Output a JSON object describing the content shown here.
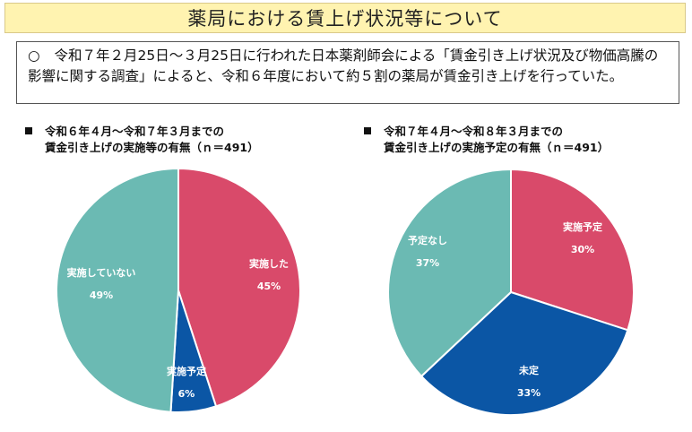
{
  "header": {
    "title": "薬局における賃上げ状況等について"
  },
  "summary": {
    "mark": "○",
    "text": "令和７年２月25日～３月25日に行われた日本薬剤師会による「賃金引き上げ状況及び物価高騰の影響に関する調査」によると、令和６年度において約５割の薬局が賃金引き上げを行っていた。"
  },
  "colors": {
    "red": "#d94a6a",
    "blue": "#0b56a5",
    "teal": "#6bbab3",
    "title_bg": "#fff3b0"
  },
  "chart_data": [
    {
      "type": "pie",
      "title_line1": "令和６年４月～令和７年３月までの",
      "title_line2": "賃金引き上げの実施等の有無（ｎ＝491）",
      "slices": [
        {
          "label": "実施した",
          "value": 45,
          "value_label": "45%",
          "color": "#d94a6a"
        },
        {
          "label": "実施予定",
          "value": 6,
          "value_label": "6%",
          "color": "#0b56a5"
        },
        {
          "label": "実施していない",
          "value": 49,
          "value_label": "49%",
          "color": "#6bbab3"
        }
      ],
      "start": "12 o'clock",
      "direction": "clockwise"
    },
    {
      "type": "pie",
      "title_line1": "令和７年４月～令和８年３月までの",
      "title_line2": "賃金引き上げの実施予定の有無（ｎ＝491）",
      "slices": [
        {
          "label": "実施予定",
          "value": 30,
          "value_label": "30%",
          "color": "#d94a6a"
        },
        {
          "label": "未定",
          "value": 33,
          "value_label": "33%",
          "color": "#0b56a5"
        },
        {
          "label": "予定なし",
          "value": 37,
          "value_label": "37%",
          "color": "#6bbab3"
        }
      ],
      "start": "12 o'clock",
      "direction": "clockwise"
    }
  ]
}
